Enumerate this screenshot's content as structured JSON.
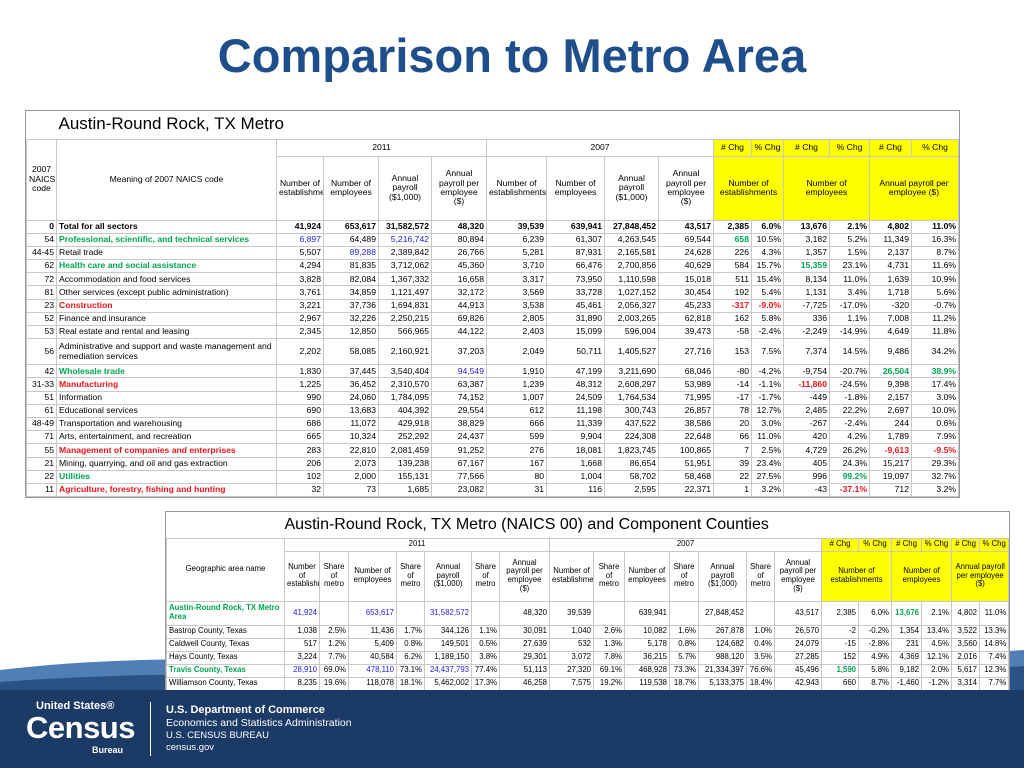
{
  "title": "Comparison to Metro Area",
  "table1": {
    "title": "Austin-Round Rock, TX Metro",
    "code_header": "2007 NAICS code",
    "meaning_header": "Meaning of 2007 NAICS code",
    "groups": [
      {
        "label": "2011",
        "columns": [
          "Number of establishments",
          "Number of employees",
          "Annual payroll ($1,000)",
          "Annual payroll per employee ($)"
        ]
      },
      {
        "label": "2007",
        "columns": [
          "Number of establishments",
          "Number of employees",
          "Annual payroll ($1,000)",
          "Annual payroll per employee ($)"
        ]
      }
    ],
    "changes": [
      {
        "label": "Number of establishments",
        "columns": [
          "# Chg",
          "% Chg"
        ]
      },
      {
        "label": "Number of employees",
        "columns": [
          "# Chg",
          "% Chg"
        ]
      },
      {
        "label": "Annual payroll per employee ($)",
        "columns": [
          "# Chg",
          "% Chg"
        ]
      }
    ],
    "rows": [
      [
        "0",
        "Total for all sectors",
        "41,924",
        "653,617",
        "31,582,572",
        "48,320",
        "39,539",
        "639,941",
        "27,848,452",
        "43,517",
        "2,385",
        "6.0%",
        "13,676",
        "2.1%",
        "4,802",
        "11.0%"
      ],
      [
        "54",
        "Professional, scientific, and technical services",
        "6,897",
        "64,489",
        "5,216,742",
        "80,894",
        "6,239",
        "61,307",
        "4,263,545",
        "69,544",
        "658",
        "10.5%",
        "3,182",
        "5.2%",
        "11,349",
        "16.3%"
      ],
      [
        "44-45",
        "Retail trade",
        "5,507",
        "89,288",
        "2,389,842",
        "26,766",
        "5,281",
        "87,931",
        "2,165,581",
        "24,628",
        "226",
        "4.3%",
        "1,357",
        "1.5%",
        "2,137",
        "8.7%"
      ],
      [
        "62",
        "Health care and social assistance",
        "4,294",
        "81,835",
        "3,712,062",
        "45,360",
        "3,710",
        "66,476",
        "2,700,856",
        "40,629",
        "584",
        "15.7%",
        "15,359",
        "23.1%",
        "4,731",
        "11.6%"
      ],
      [
        "72",
        "Accommodation and food services",
        "3,828",
        "82,084",
        "1,367,332",
        "16,658",
        "3,317",
        "73,950",
        "1,110,598",
        "15,018",
        "511",
        "15.4%",
        "8,134",
        "11.0%",
        "1,639",
        "10.9%"
      ],
      [
        "81",
        "Other services (except public administration)",
        "3,761",
        "34,859",
        "1,121,497",
        "32,172",
        "3,569",
        "33,728",
        "1,027,152",
        "30,454",
        "192",
        "5.4%",
        "1,131",
        "3.4%",
        "1,718",
        "5.6%"
      ],
      [
        "23",
        "Construction",
        "3,221",
        "37,736",
        "1,694,831",
        "44,913",
        "3,538",
        "45,461",
        "2,056,327",
        "45,233",
        "-317",
        "-9.0%",
        "-7,725",
        "-17.0%",
        "-320",
        "-0.7%"
      ],
      [
        "52",
        "Finance and insurance",
        "2,967",
        "32,226",
        "2,250,215",
        "69,826",
        "2,805",
        "31,890",
        "2,003,265",
        "62,818",
        "162",
        "5.8%",
        "336",
        "1.1%",
        "7,008",
        "11.2%"
      ],
      [
        "53",
        "Real estate and rental and leasing",
        "2,345",
        "12,850",
        "566,965",
        "44,122",
        "2,403",
        "15,099",
        "596,004",
        "39,473",
        "-58",
        "-2.4%",
        "-2,249",
        "-14.9%",
        "4,649",
        "11.8%"
      ],
      [
        "56",
        "Administrative and support and waste management and remediation services",
        "2,202",
        "58,085",
        "2,160,921",
        "37,203",
        "2,049",
        "50,711",
        "1,405,527",
        "27,716",
        "153",
        "7.5%",
        "7,374",
        "14.5%",
        "9,486",
        "34.2%"
      ],
      [
        "42",
        "Wholesale trade",
        "1,830",
        "37,445",
        "3,540,404",
        "94,549",
        "1,910",
        "47,199",
        "3,211,690",
        "68,046",
        "-80",
        "-4.2%",
        "-9,754",
        "-20.7%",
        "26,504",
        "38.9%"
      ],
      [
        "31-33",
        "Manufacturing",
        "1,225",
        "36,452",
        "2,310,570",
        "63,387",
        "1,239",
        "48,312",
        "2,608,297",
        "53,989",
        "-14",
        "-1.1%",
        "-11,860",
        "-24.5%",
        "9,398",
        "17.4%"
      ],
      [
        "51",
        "Information",
        "990",
        "24,060",
        "1,784,095",
        "74,152",
        "1,007",
        "24,509",
        "1,764,534",
        "71,995",
        "-17",
        "-1.7%",
        "-449",
        "-1.8%",
        "2,157",
        "3.0%"
      ],
      [
        "61",
        "Educational services",
        "690",
        "13,683",
        "404,392",
        "29,554",
        "612",
        "11,198",
        "300,743",
        "26,857",
        "78",
        "12.7%",
        "2,485",
        "22.2%",
        "2,697",
        "10.0%"
      ],
      [
        "48-49",
        "Transportation and warehousing",
        "686",
        "11,072",
        "429,918",
        "38,829",
        "666",
        "11,339",
        "437,522",
        "38,586",
        "20",
        "3.0%",
        "-267",
        "-2.4%",
        "244",
        "0.6%"
      ],
      [
        "71",
        "Arts, entertainment, and recreation",
        "665",
        "10,324",
        "252,292",
        "24,437",
        "599",
        "9,904",
        "224,308",
        "22,648",
        "66",
        "11.0%",
        "420",
        "4.2%",
        "1,789",
        "7.9%"
      ],
      [
        "55",
        "Management of companies and enterprises",
        "283",
        "22,810",
        "2,081,459",
        "91,252",
        "276",
        "18,081",
        "1,823,745",
        "100,865",
        "7",
        "2.5%",
        "4,729",
        "26.2%",
        "-9,613",
        "-9.5%"
      ],
      [
        "21",
        "Mining, quarrying, and oil and gas extraction",
        "206",
        "2,073",
        "139,238",
        "67,167",
        "167",
        "1,668",
        "86,654",
        "51,951",
        "39",
        "23.4%",
        "405",
        "24.3%",
        "15,217",
        "29.3%"
      ],
      [
        "22",
        "Utilities",
        "102",
        "2,000",
        "155,131",
        "77,566",
        "80",
        "1,004",
        "58,702",
        "58,468",
        "22",
        "27.5%",
        "996",
        "99.2%",
        "19,097",
        "32.7%"
      ],
      [
        "11",
        "Agriculture, forestry, fishing and hunting",
        "32",
        "73",
        "1,685",
        "23,082",
        "31",
        "116",
        "2,595",
        "22,371",
        "1",
        "3.2%",
        "-43",
        "-37.1%",
        "712",
        "3.2%"
      ]
    ]
  },
  "table2": {
    "title": "Austin-Round Rock, TX Metro (NAICS 00) and Component Counties",
    "geo_header": "Geographic area name",
    "groups": [
      {
        "label": "2011",
        "columns": [
          "Number of establishments",
          "Share of metro",
          "Number of employees",
          "Share of metro",
          "Annual payroll ($1,000)",
          "Share of metro",
          "Annual payroll per employee ($)"
        ]
      },
      {
        "label": "2007",
        "columns": [
          "Number of establishments",
          "Share of metro",
          "Number of employees",
          "Share of metro",
          "Annual payroll ($1,000)",
          "Share of metro",
          "Annual payroll per employee ($)"
        ]
      }
    ],
    "changes": [
      {
        "label": "Number of establishments",
        "columns": [
          "# Chg",
          "% Chg"
        ]
      },
      {
        "label": "Number of employees",
        "columns": [
          "# Chg",
          "% Chg"
        ]
      },
      {
        "label": "Annual payroll per employee ($)",
        "columns": [
          "# Chg",
          "% Chg"
        ]
      }
    ],
    "rows": [
      [
        "Austin-Round Rock, TX Metro Area",
        "41,924",
        null,
        "653,617",
        null,
        "31,582,572",
        null,
        "48,320",
        "39,539",
        null,
        "639,941",
        null,
        "27,848,452",
        null,
        "43,517",
        "2,385",
        "6.0%",
        "13,676",
        "2.1%",
        "4,802",
        "11.0%"
      ],
      [
        "Bastrop County, Texas",
        "1,038",
        "2.5%",
        "11,436",
        "1.7%",
        "344,126",
        "1.1%",
        "30,091",
        "1,040",
        "2.6%",
        "10,082",
        "1.6%",
        "267,878",
        "1.0%",
        "26,570",
        "-2",
        "-0.2%",
        "1,354",
        "13.4%",
        "3,522",
        "13.3%"
      ],
      [
        "Caldwell County, Texas",
        "517",
        "1.2%",
        "5,409",
        "0.8%",
        "149,501",
        "0.5%",
        "27,639",
        "532",
        "1.3%",
        "5,178",
        "0.8%",
        "124,682",
        "0.4%",
        "24,079",
        "-15",
        "-2.8%",
        "231",
        "4.5%",
        "3,560",
        "14.8%"
      ],
      [
        "Hays County, Texas",
        "3,224",
        "7.7%",
        "40,584",
        "6.2%",
        "1,189,150",
        "3.8%",
        "29,301",
        "3,072",
        "7.8%",
        "36,215",
        "5.7%",
        "988,120",
        "3.5%",
        "27,285",
        "152",
        "4.9%",
        "4,369",
        "12.1%",
        "2,016",
        "7.4%"
      ],
      [
        "Travis County, Texas",
        "28,910",
        "69.0%",
        "478,110",
        "73.1%",
        "24,437,793",
        "77.4%",
        "51,113",
        "27,320",
        "69.1%",
        "468,928",
        "73.3%",
        "21,334,397",
        "76.6%",
        "45,496",
        "1,590",
        "5.8%",
        "9,182",
        "2.0%",
        "5,617",
        "12.3%"
      ],
      [
        "Williamson County, Texas",
        "8,235",
        "19.6%",
        "118,078",
        "18.1%",
        "5,462,002",
        "17.3%",
        "46,258",
        "7,575",
        "19.2%",
        "119,538",
        "18.7%",
        "5,133,375",
        "18.4%",
        "42,943",
        "660",
        "8.7%",
        "-1,460",
        "-1.2%",
        "3,314",
        "7.7%"
      ]
    ]
  },
  "footer": {
    "logo": [
      "United States®",
      "Census",
      "Bureau"
    ],
    "lines": [
      "U.S. Department of Commerce",
      "Economics and Statistics Administration",
      "U.S. CENSUS BUREAU",
      "census.gov"
    ]
  }
}
